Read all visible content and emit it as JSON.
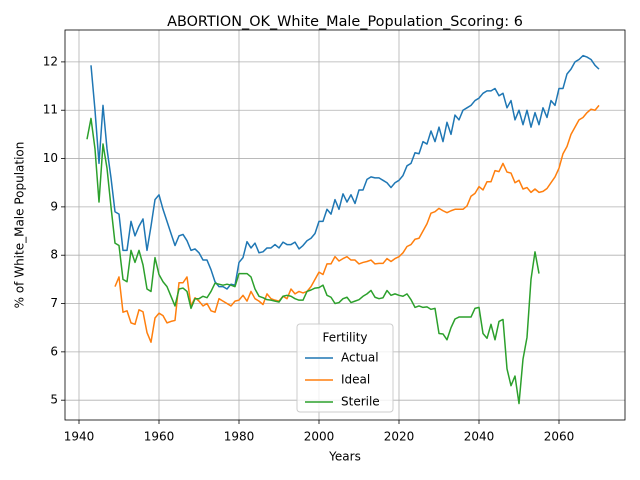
{
  "chart_data": {
    "type": "line",
    "title": "ABORTION_OK_White_Male_Population_Scoring: 6",
    "x_label": "Years",
    "y_label": "% of White_Male Population",
    "legend_title": "Fertility",
    "legend": "lower center",
    "grid": true,
    "xlim": [
      1936.5,
      2076.5
    ],
    "ylim": [
      4.59,
      12.66
    ],
    "xticks": [
      1940,
      1960,
      1980,
      2000,
      2020,
      2040,
      2060
    ],
    "yticks": [
      5,
      6,
      7,
      8,
      9,
      10,
      11,
      12
    ],
    "x": [
      1942,
      1943,
      1944,
      1945,
      1946,
      1947,
      1948,
      1949,
      1950,
      1951,
      1952,
      1953,
      1954,
      1955,
      1956,
      1957,
      1958,
      1959,
      1960,
      1961,
      1962,
      1963,
      1964,
      1965,
      1966,
      1967,
      1968,
      1969,
      1970,
      1971,
      1972,
      1973,
      1974,
      1975,
      1976,
      1977,
      1978,
      1979,
      1980,
      1981,
      1982,
      1983,
      1984,
      1985,
      1986,
      1987,
      1988,
      1989,
      1990,
      1991,
      1992,
      1993,
      1994,
      1995,
      1996,
      1997,
      1998,
      1999,
      2000,
      2001,
      2002,
      2003,
      2004,
      2005,
      2006,
      2007,
      2008,
      2009,
      2010,
      2011,
      2012,
      2013,
      2014,
      2015,
      2016,
      2017,
      2018,
      2019,
      2020,
      2021,
      2022,
      2023,
      2024,
      2025,
      2026,
      2027,
      2028,
      2029,
      2030,
      2031,
      2032,
      2033,
      2034,
      2035,
      2036,
      2037,
      2038,
      2039,
      2040,
      2041,
      2042,
      2043,
      2044,
      2045,
      2046,
      2047,
      2048,
      2049,
      2050,
      2051,
      2052,
      2053,
      2054,
      2055,
      2056,
      2057,
      2058,
      2059,
      2060,
      2061,
      2062,
      2063,
      2064,
      2065,
      2066,
      2067,
      2068,
      2069,
      2070
    ],
    "series": [
      {
        "name": "Actual",
        "color": "#1f77b4",
        "values": [
          null,
          11.93,
          11.0,
          9.9,
          11.1,
          10.2,
          9.6,
          8.9,
          8.85,
          8.1,
          8.1,
          8.7,
          8.4,
          8.6,
          8.75,
          8.1,
          8.6,
          9.15,
          9.25,
          8.95,
          8.7,
          8.45,
          8.2,
          8.4,
          8.43,
          8.3,
          8.1,
          8.13,
          8.05,
          7.9,
          7.9,
          7.7,
          7.45,
          7.35,
          7.35,
          7.3,
          7.4,
          7.38,
          7.85,
          7.95,
          8.28,
          8.15,
          8.25,
          8.05,
          8.07,
          8.15,
          8.15,
          8.22,
          8.15,
          8.27,
          8.22,
          8.22,
          8.27,
          8.13,
          8.2,
          8.3,
          8.35,
          8.45,
          8.7,
          8.7,
          8.95,
          8.85,
          9.15,
          8.95,
          9.27,
          9.1,
          9.25,
          9.07,
          9.35,
          9.35,
          9.57,
          9.62,
          9.6,
          9.6,
          9.55,
          9.5,
          9.4,
          9.5,
          9.55,
          9.65,
          9.85,
          9.9,
          10.12,
          10.1,
          10.35,
          10.3,
          10.57,
          10.35,
          10.65,
          10.35,
          10.75,
          10.5,
          10.9,
          10.8,
          11.0,
          11.05,
          11.1,
          11.2,
          11.25,
          11.35,
          11.4,
          11.4,
          11.45,
          11.3,
          11.35,
          11.05,
          11.2,
          10.8,
          11.0,
          10.7,
          11.0,
          10.65,
          10.95,
          10.7,
          11.05,
          10.85,
          11.2,
          11.1,
          11.45,
          11.45,
          11.75,
          11.85,
          12.0,
          12.05,
          12.13,
          12.1,
          12.05,
          11.93,
          11.85
        ]
      },
      {
        "name": "Ideal",
        "color": "#ff7f0e",
        "values": [
          null,
          null,
          null,
          null,
          null,
          null,
          null,
          7.35,
          7.55,
          6.82,
          6.85,
          6.6,
          6.57,
          6.87,
          6.83,
          6.4,
          6.2,
          6.7,
          6.8,
          6.75,
          6.6,
          6.63,
          6.65,
          7.43,
          7.43,
          7.55,
          6.95,
          7.12,
          7.05,
          6.95,
          7.0,
          6.85,
          6.82,
          7.1,
          7.05,
          7.0,
          6.95,
          7.05,
          7.07,
          7.17,
          7.05,
          7.25,
          7.1,
          7.05,
          6.98,
          7.2,
          7.1,
          7.07,
          7.05,
          7.15,
          7.1,
          7.3,
          7.2,
          7.25,
          7.22,
          7.25,
          7.35,
          7.5,
          7.65,
          7.6,
          7.82,
          7.82,
          7.97,
          7.88,
          7.93,
          7.97,
          7.9,
          7.9,
          7.82,
          7.85,
          7.87,
          7.9,
          7.82,
          7.83,
          7.83,
          7.93,
          7.87,
          7.93,
          7.97,
          8.05,
          8.18,
          8.22,
          8.33,
          8.35,
          8.5,
          8.65,
          8.87,
          8.9,
          8.97,
          8.92,
          8.88,
          8.92,
          8.95,
          8.95,
          8.95,
          9.02,
          9.22,
          9.28,
          9.42,
          9.35,
          9.52,
          9.52,
          9.75,
          9.73,
          9.9,
          9.72,
          9.7,
          9.5,
          9.55,
          9.37,
          9.4,
          9.3,
          9.37,
          9.3,
          9.32,
          9.38,
          9.5,
          9.62,
          9.8,
          10.1,
          10.25,
          10.5,
          10.65,
          10.8,
          10.85,
          10.95,
          11.02,
          11.0,
          11.1
        ]
      },
      {
        "name": "Sterile",
        "color": "#2ca02c",
        "values": [
          10.4,
          10.83,
          10.2,
          9.1,
          10.3,
          9.8,
          9.0,
          8.25,
          8.2,
          7.5,
          7.45,
          8.1,
          7.85,
          8.1,
          7.8,
          7.3,
          7.25,
          7.95,
          7.6,
          7.45,
          7.35,
          7.15,
          6.95,
          7.3,
          7.32,
          7.25,
          6.9,
          7.1,
          7.1,
          7.15,
          7.12,
          7.25,
          7.42,
          7.4,
          7.38,
          7.4,
          7.38,
          7.35,
          7.62,
          7.62,
          7.62,
          7.55,
          7.3,
          7.15,
          7.12,
          7.08,
          7.07,
          7.05,
          7.03,
          7.15,
          7.17,
          7.15,
          7.1,
          7.07,
          7.07,
          7.25,
          7.28,
          7.32,
          7.33,
          7.38,
          7.17,
          7.13,
          7.0,
          7.02,
          7.1,
          7.13,
          7.02,
          7.05,
          7.08,
          7.15,
          7.2,
          7.27,
          7.13,
          7.1,
          7.12,
          7.27,
          7.17,
          7.2,
          7.17,
          7.15,
          7.2,
          7.08,
          6.92,
          6.95,
          6.92,
          6.93,
          6.88,
          6.9,
          6.38,
          6.37,
          6.25,
          6.5,
          6.68,
          6.72,
          6.72,
          6.72,
          6.72,
          6.9,
          6.92,
          6.38,
          6.28,
          6.57,
          6.25,
          6.63,
          6.67,
          5.65,
          5.3,
          5.5,
          4.93,
          5.85,
          6.3,
          7.5,
          8.07,
          7.62,
          null,
          null,
          null,
          null,
          null,
          null,
          null,
          null,
          null,
          null,
          null,
          null,
          null,
          null,
          null
        ]
      }
    ]
  }
}
